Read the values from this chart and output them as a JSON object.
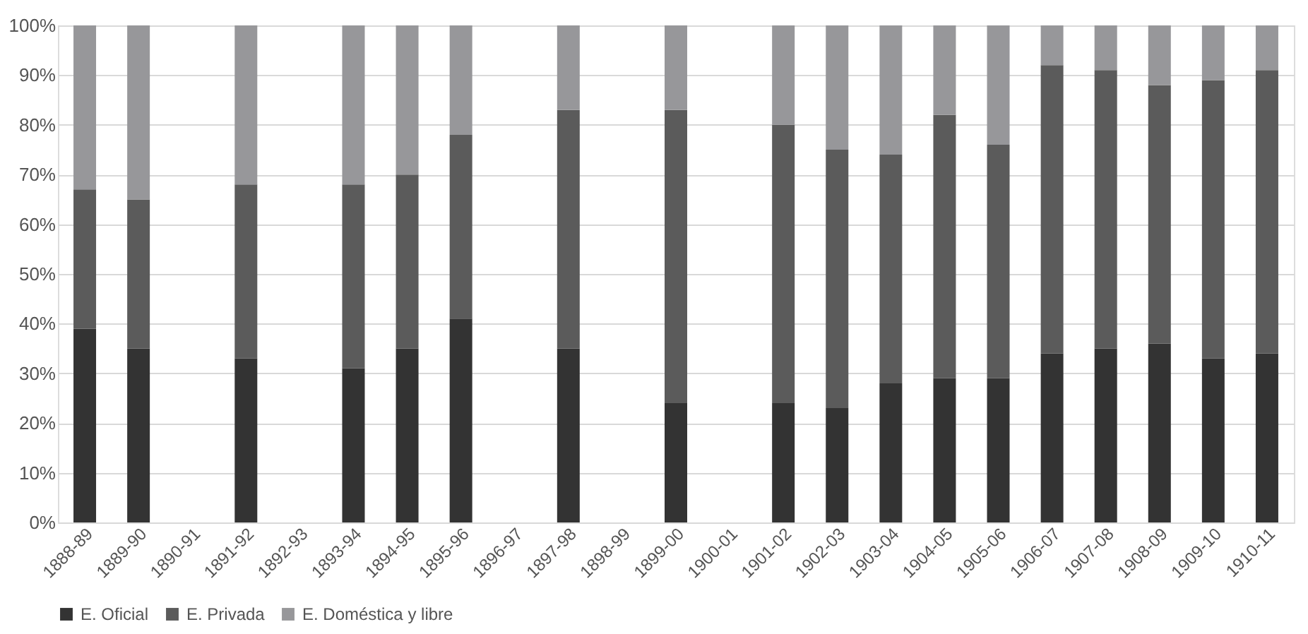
{
  "chart_data": {
    "type": "bar",
    "stacked": true,
    "categories": [
      "1888-89",
      "1889-90",
      "1890-91",
      "1891-92",
      "1892-93",
      "1893-94",
      "1894-95",
      "1895-96",
      "1896-97",
      "1897-98",
      "1898-99",
      "1899-00",
      "1900-01",
      "1901-02",
      "1902-03",
      "1903-04",
      "1904-05",
      "1905-06",
      "1906-07",
      "1907-08",
      "1908-09",
      "1909-10",
      "1910-11"
    ],
    "series": [
      {
        "name": "E. Oficial",
        "color": "#333333",
        "values": [
          39,
          35,
          null,
          33,
          null,
          31,
          35,
          41,
          null,
          35,
          null,
          24,
          null,
          24,
          23,
          28,
          29,
          29,
          34,
          35,
          36,
          33,
          34
        ]
      },
      {
        "name": "E. Privada",
        "color": "#5b5b5b",
        "values": [
          28,
          30,
          null,
          35,
          null,
          37,
          35,
          37,
          null,
          48,
          null,
          59,
          null,
          56,
          52,
          46,
          53,
          47,
          58,
          56,
          52,
          56,
          57
        ]
      },
      {
        "name": "E. Doméstica y libre",
        "color": "#97979a",
        "values": [
          33,
          35,
          null,
          32,
          null,
          32,
          30,
          22,
          null,
          17,
          null,
          17,
          null,
          20,
          25,
          26,
          18,
          24,
          8,
          9,
          12,
          11,
          9
        ]
      }
    ],
    "ylim": [
      0,
      100
    ],
    "yticks": [
      {
        "value": 0,
        "label": "0%"
      },
      {
        "value": 10,
        "label": "10%"
      },
      {
        "value": 20,
        "label": "20%"
      },
      {
        "value": 30,
        "label": "30%"
      },
      {
        "value": 40,
        "label": "40%"
      },
      {
        "value": 50,
        "label": "50%"
      },
      {
        "value": 60,
        "label": "60%"
      },
      {
        "value": 70,
        "label": "70%"
      },
      {
        "value": 80,
        "label": "80%"
      },
      {
        "value": 90,
        "label": "90%"
      },
      {
        "value": 100,
        "label": "100%"
      }
    ],
    "grid": "y",
    "legend": "bottom"
  }
}
